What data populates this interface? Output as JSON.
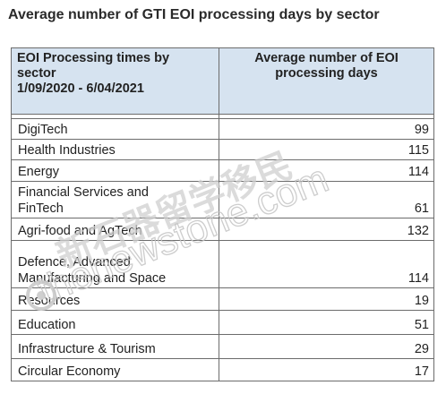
{
  "title": "Average number of GTI EOI processing days by sector",
  "table": {
    "header": {
      "col1_line1": "EOI Processing times by",
      "col1_line2": "sector",
      "col1_line3": "1/09/2020 - 6/04/2021",
      "col2_line1": "Average number of EOI",
      "col2_line2": "processing days"
    },
    "rows": [
      {
        "sector": "DigiTech",
        "days": "99"
      },
      {
        "sector": "Health Industries",
        "days": "115"
      },
      {
        "sector": "Energy",
        "days": "114"
      },
      {
        "sector_line1": "Financial Services and",
        "sector_line2": "FinTech",
        "days": "61"
      },
      {
        "sector": "Agri-food and AgTech",
        "days": "132"
      },
      {
        "sector_line1": "Defence, Advanced",
        "sector_line2": "Manufacturing and Space",
        "days": "114"
      },
      {
        "sector": "Resources",
        "days": "19"
      },
      {
        "sector": "Education",
        "days": "51"
      },
      {
        "sector": "Infrastructure & Tourism",
        "days": "29"
      },
      {
        "sector": "Circular Economy",
        "days": "17"
      }
    ]
  },
  "watermark": {
    "logo_text": "新石器留学移民",
    "url_text": "thenewstone.com",
    "color": "#cfcfcf"
  }
}
